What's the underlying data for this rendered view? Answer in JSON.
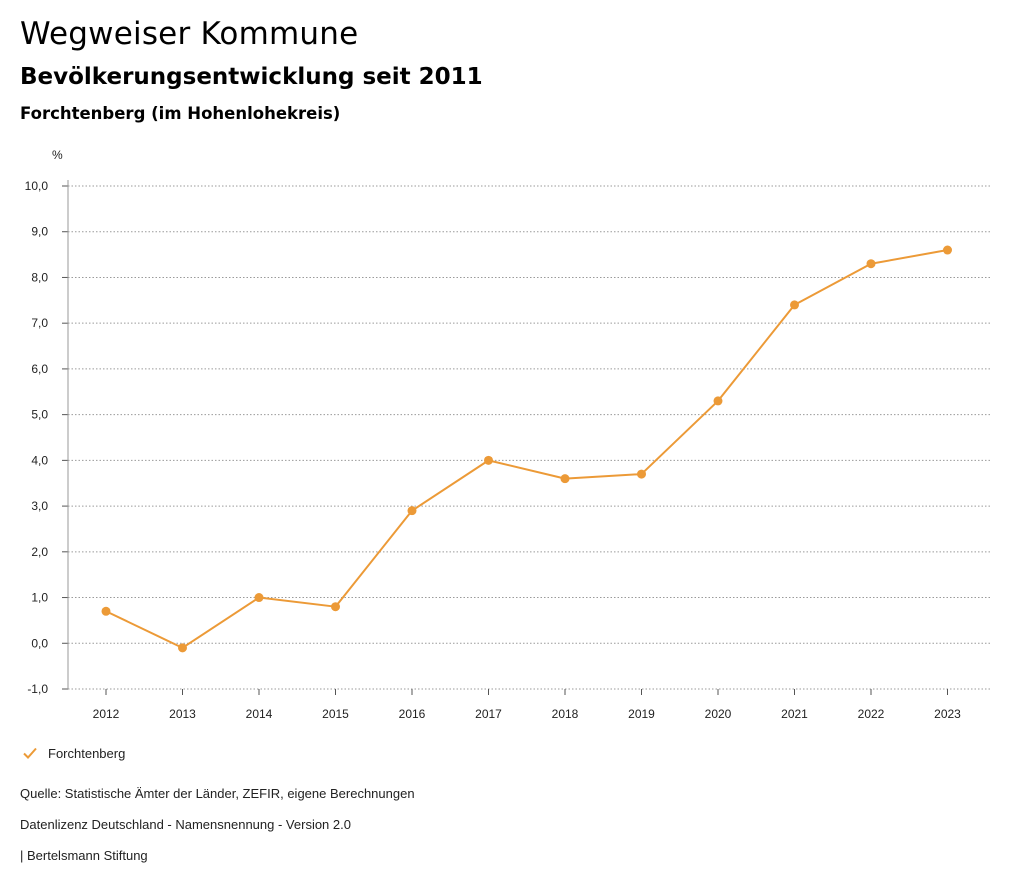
{
  "header": {
    "title": "Wegweiser Kommune",
    "subtitle": "Bevölkerungsentwicklung seit 2011",
    "region": "Forchtenberg (im Hohenlohekreis)"
  },
  "chart_data": {
    "type": "line",
    "unit_label": "%",
    "x": [
      "2012",
      "2013",
      "2014",
      "2015",
      "2016",
      "2017",
      "2018",
      "2019",
      "2020",
      "2021",
      "2022",
      "2023"
    ],
    "series": [
      {
        "name": "Forchtenberg",
        "color": "#ec9a37",
        "values": [
          0.7,
          -0.1,
          1.0,
          0.8,
          2.9,
          4.0,
          3.6,
          3.7,
          5.3,
          7.4,
          8.3,
          8.6
        ]
      }
    ],
    "ylim": [
      -1.0,
      10.0
    ],
    "yticks": [
      "-1,0",
      "0,0",
      "1,0",
      "2,0",
      "3,0",
      "4,0",
      "5,0",
      "6,0",
      "7,0",
      "8,0",
      "9,0",
      "10,0"
    ],
    "grid": true,
    "legend": "bottom-left"
  },
  "legend": {
    "label": "Forchtenberg",
    "icon": "check-icon"
  },
  "footer": {
    "source": "Quelle: Statistische Ämter der Länder, ZEFIR, eigene Berechnungen",
    "license": "Datenlizenz Deutschland - Namensnennung - Version 2.0",
    "publisher": "| Bertelsmann Stiftung"
  }
}
